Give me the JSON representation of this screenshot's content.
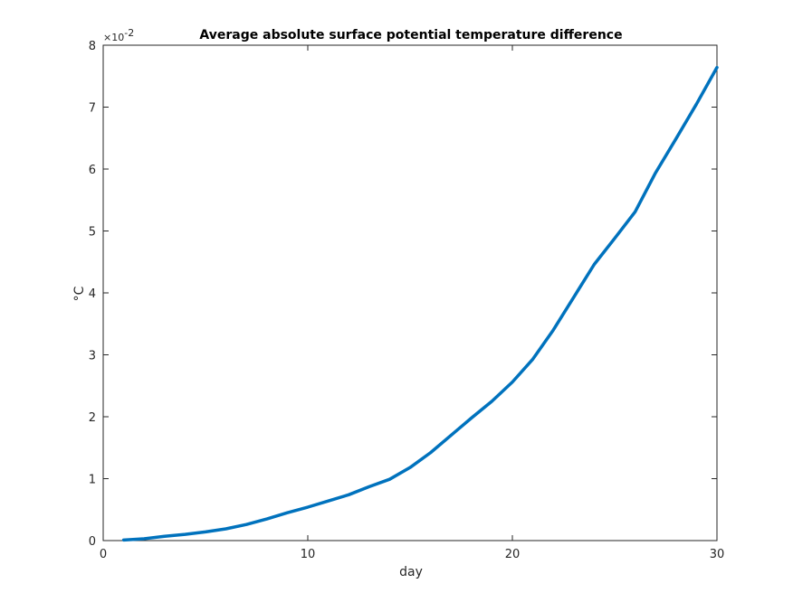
{
  "chart_data": {
    "type": "line",
    "title": "Average absolute surface potential temperature difference",
    "xlabel": "day",
    "ylabel": "°C",
    "y_exponent_label": "×10",
    "y_exponent_power": "-2",
    "xlim": [
      0,
      30
    ],
    "ylim": [
      0,
      8
    ],
    "xticks": [
      0,
      10,
      20,
      30
    ],
    "yticks": [
      0,
      1,
      2,
      3,
      4,
      5,
      6,
      7,
      8
    ],
    "grid": false,
    "legend": "none",
    "series": [
      {
        "color": "#0072BD",
        "x": [
          1,
          2,
          3,
          4,
          5,
          6,
          7,
          8,
          9,
          10,
          11,
          12,
          13,
          14,
          15,
          16,
          17,
          18,
          19,
          20,
          21,
          22,
          23,
          24,
          25,
          26,
          27,
          28,
          29,
          30
        ],
        "y": [
          0.01,
          0.03,
          0.07,
          0.1,
          0.14,
          0.19,
          0.26,
          0.35,
          0.45,
          0.54,
          0.64,
          0.74,
          0.87,
          0.99,
          1.18,
          1.42,
          1.7,
          1.98,
          2.25,
          2.56,
          2.93,
          3.4,
          3.93,
          4.46,
          4.88,
          5.31,
          5.94,
          6.49,
          7.05,
          7.64
        ]
      }
    ]
  }
}
